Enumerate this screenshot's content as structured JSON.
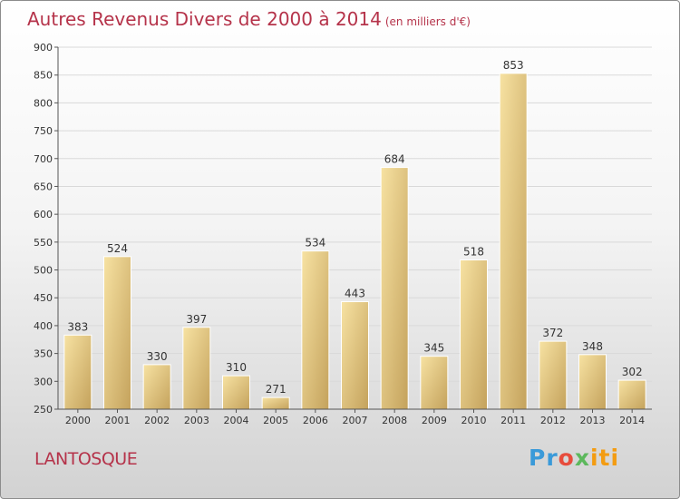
{
  "title": "Autres Revenus Divers de 2000 à 2014",
  "subtitle": "(en milliers d'€)",
  "place": "LANTOSQUE",
  "logo": {
    "text": "Proxiti",
    "parts": [
      "Pr",
      "o",
      "x",
      "iti"
    ]
  },
  "colors": {
    "title": "#b5334a",
    "bar_light": "#f4dc96",
    "bar_dark": "#c8a660"
  },
  "chart_data": {
    "type": "bar",
    "title": "Autres Revenus Divers de 2000 à 2014",
    "subtitle": "(en milliers d'€)",
    "xlabel": "",
    "ylabel": "",
    "categories": [
      "2000",
      "2001",
      "2002",
      "2003",
      "2004",
      "2005",
      "2006",
      "2007",
      "2008",
      "2009",
      "2010",
      "2011",
      "2012",
      "2013",
      "2014"
    ],
    "values": [
      383,
      524,
      330,
      397,
      310,
      271,
      534,
      443,
      684,
      345,
      518,
      853,
      372,
      348,
      302
    ],
    "ylim": [
      250,
      900
    ],
    "yticks": [
      250,
      300,
      350,
      400,
      450,
      500,
      550,
      600,
      650,
      700,
      750,
      800,
      850,
      900
    ],
    "grid": true,
    "legend": "none",
    "data_labels": true
  }
}
